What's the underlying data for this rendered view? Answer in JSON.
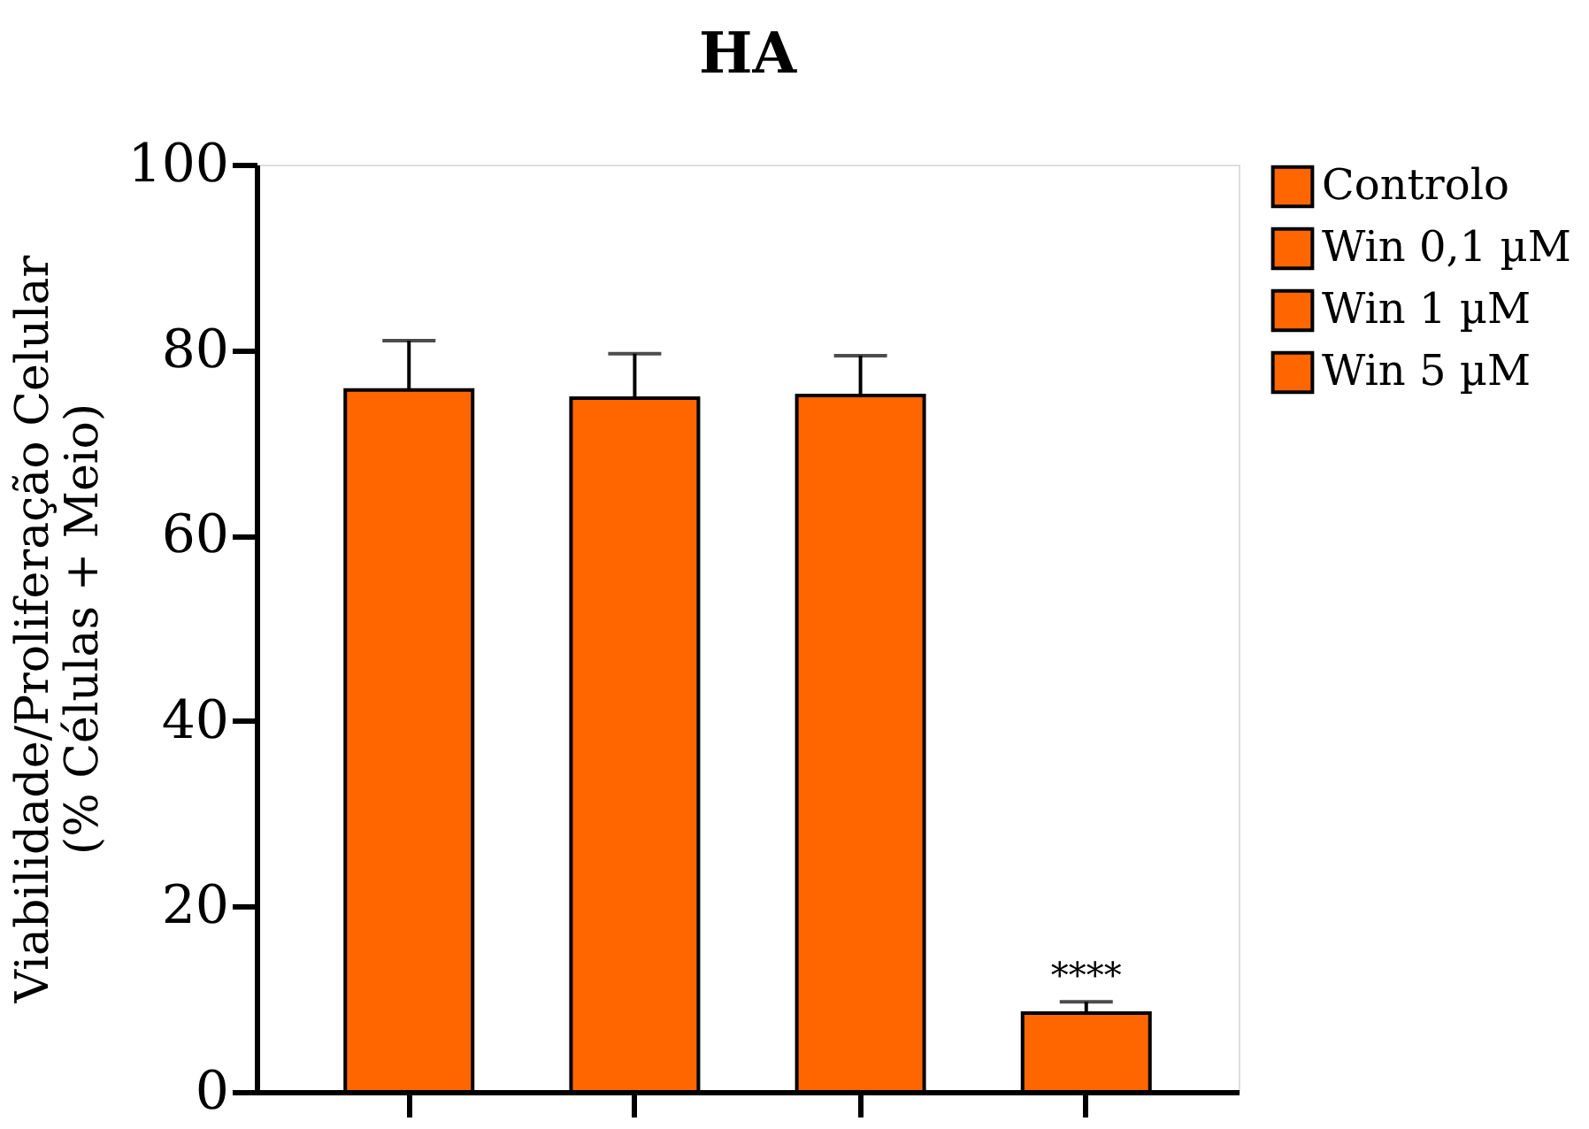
{
  "chart_data": {
    "type": "bar",
    "title": "HA",
    "ylabel": "Viabilidade/Proliferação Celular\n(% Células + Meio)",
    "categories": [
      null,
      null,
      null,
      null
    ],
    "series": [
      {
        "name": "Controlo",
        "color": "#ff6600",
        "values": [
          75.7,
          null,
          null,
          null
        ],
        "errors": [
          5.3,
          null,
          null,
          null
        ]
      },
      {
        "name": "Win 0,1 µM",
        "color": "#ff6600",
        "values": [
          null,
          74.8,
          null,
          null
        ],
        "errors": [
          null,
          4.8,
          null,
          null
        ]
      },
      {
        "name": "Win 1 µM",
        "color": "#ff6600",
        "values": [
          null,
          null,
          75.1,
          null
        ],
        "errors": [
          null,
          null,
          4.3,
          null
        ]
      },
      {
        "name": "Win 5 µM",
        "color": "#ff6600",
        "values": [
          null,
          null,
          null,
          8.5
        ],
        "errors": [
          null,
          null,
          null,
          1.2
        ]
      }
    ],
    "annotations": [
      {
        "text": "****",
        "y": 10.5
      }
    ],
    "ylim": [
      0,
      100
    ],
    "yticks": [
      0,
      20,
      40,
      60,
      80,
      100
    ],
    "grid": false,
    "legend": "top right",
    "tick_labels": "y"
  }
}
